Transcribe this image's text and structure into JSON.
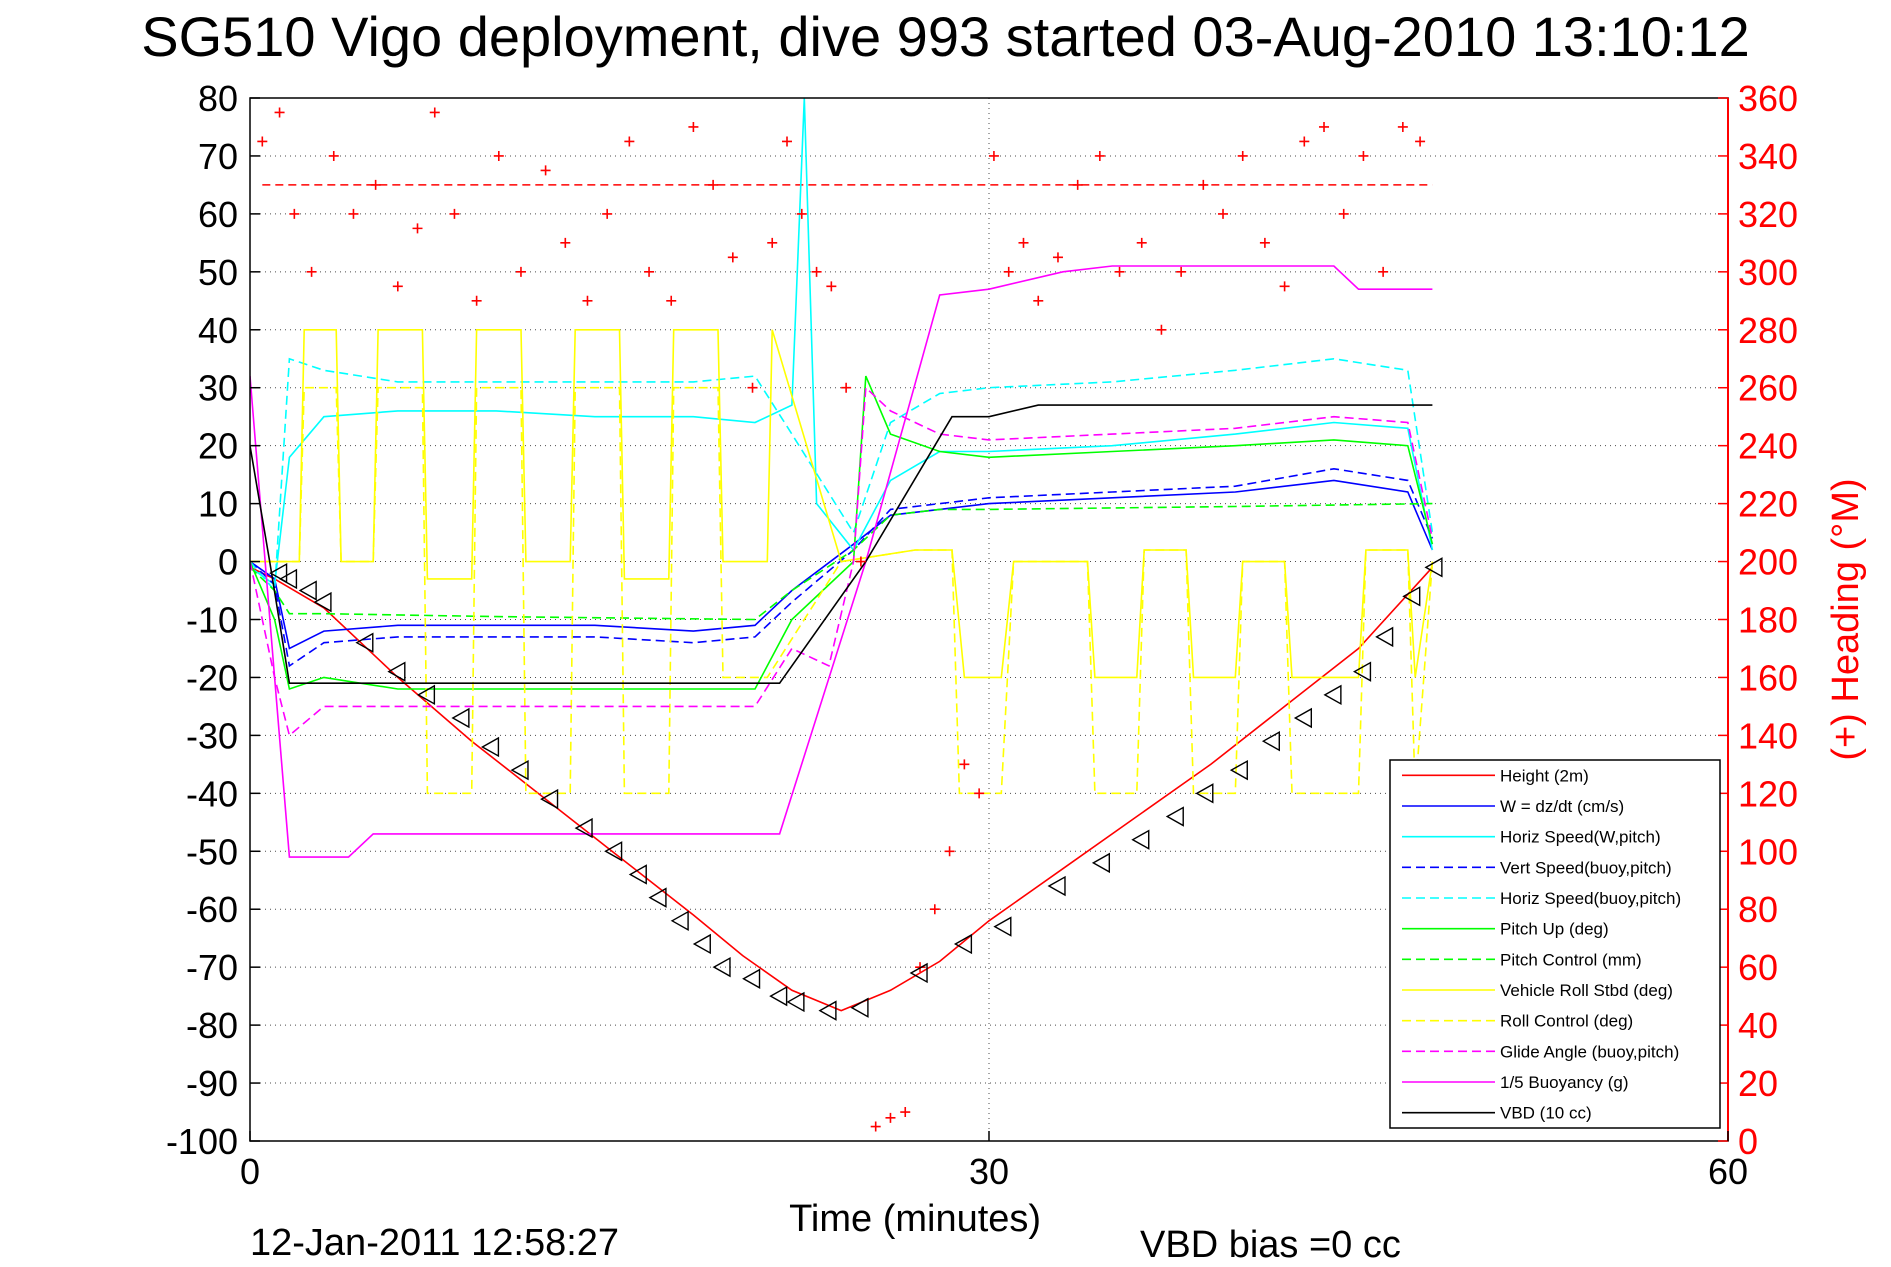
{
  "title": "SG510 Vigo deployment, dive 993 started 03-Aug-2010 13:10:12",
  "footer": {
    "date": "12-Jan-2011 12:58:27",
    "vbd_bias": "VBD bias =0 cc"
  },
  "chart_data": {
    "type": "line",
    "xlabel": "Time (minutes)",
    "ylabel_right": "(+) Heading (°M)",
    "xlim": [
      0,
      60
    ],
    "ylim_left": [
      -100,
      80
    ],
    "ylim_right": [
      0,
      360
    ],
    "x_ticks": [
      0,
      30,
      60
    ],
    "y_ticks_left": [
      80,
      70,
      60,
      50,
      40,
      30,
      20,
      10,
      0,
      -10,
      -20,
      -30,
      -40,
      -50,
      -60,
      -70,
      -80,
      -90,
      -100
    ],
    "y_ticks_right": [
      360,
      340,
      320,
      300,
      280,
      260,
      240,
      220,
      200,
      180,
      160,
      140,
      120,
      100,
      80,
      60,
      40,
      20,
      0
    ],
    "grid": true,
    "legend_position": "bottom-right",
    "colors": {
      "height": "#ff0000",
      "w": "#0000ff",
      "horiz_speed": "#00ffff",
      "pitch": "#00ff00",
      "roll": "#ffff00",
      "buoyancy": "#ff00ff",
      "vbd": "#000000",
      "heading": "#ff0000"
    },
    "series": [
      {
        "name": "Height (2m)",
        "color": "#ff0000",
        "style": "solid",
        "x": [
          0,
          1,
          3,
          6,
          9,
          12,
          15,
          18,
          20,
          22,
          24,
          26,
          28,
          30,
          33,
          36,
          39,
          42,
          45,
          48
        ],
        "y": [
          -1,
          -3,
          -8,
          -20,
          -31,
          -41,
          -51,
          -61,
          -68,
          -74,
          -77.5,
          -74,
          -69,
          -62,
          -53,
          -44,
          -35,
          -25,
          -15,
          -1
        ]
      },
      {
        "name": "W = dz/dt (cm/s)",
        "color": "#0000ff",
        "style": "solid",
        "x": [
          0,
          1,
          1.6,
          3,
          6,
          10,
          14,
          18,
          20.5,
          22,
          24.5,
          26,
          28,
          30,
          35,
          40,
          44,
          47,
          48
        ],
        "y": [
          0,
          -3,
          -15,
          -12,
          -11,
          -11,
          -11,
          -12,
          -11,
          -5,
          3,
          8,
          9,
          10,
          11,
          12,
          14,
          12,
          2
        ]
      },
      {
        "name": "Horiz Speed(W,pitch)",
        "color": "#00ffff",
        "style": "solid",
        "x": [
          0,
          1,
          1.6,
          3,
          6,
          10,
          14,
          18,
          20.5,
          22,
          22.5,
          23,
          24.5,
          26,
          28,
          30,
          35,
          40,
          44,
          47,
          48
        ],
        "y": [
          -1,
          -4,
          18,
          25,
          26,
          26,
          25,
          25,
          24,
          27,
          80,
          10,
          2,
          14,
          19,
          19,
          20,
          22,
          24,
          23,
          2
        ]
      },
      {
        "name": "Vert Speed(buoy,pitch)",
        "color": "#0000ff",
        "style": "dashed",
        "x": [
          0,
          1,
          1.6,
          3,
          6,
          10,
          14,
          18,
          20.5,
          22,
          24.5,
          26,
          28,
          30,
          35,
          40,
          44,
          47,
          48
        ],
        "y": [
          0,
          -4,
          -18,
          -14,
          -13,
          -13,
          -13,
          -14,
          -13,
          -7,
          2,
          9,
          10,
          11,
          12,
          13,
          16,
          14,
          4
        ]
      },
      {
        "name": "Horiz Speed(buoy,pitch)",
        "color": "#00ffff",
        "style": "dashed",
        "x": [
          0,
          1,
          1.6,
          3,
          6,
          10,
          14,
          18,
          20.5,
          22,
          24.5,
          26,
          28,
          30,
          35,
          40,
          44,
          47,
          48
        ],
        "y": [
          0,
          -5,
          35,
          33,
          31,
          31,
          31,
          31,
          32,
          22,
          5,
          24,
          29,
          30,
          31,
          33,
          35,
          33,
          5
        ]
      },
      {
        "name": "Pitch Up (deg)",
        "color": "#00ff00",
        "style": "solid",
        "x": [
          0,
          1,
          1.6,
          3,
          6,
          10,
          14,
          18,
          20.5,
          22,
          24.5,
          25,
          26,
          28,
          30,
          35,
          40,
          44,
          47,
          48
        ],
        "y": [
          0,
          -10,
          -22,
          -20,
          -22,
          -22,
          -22,
          -22,
          -22,
          -10,
          0,
          32,
          22,
          19,
          18,
          19,
          20,
          21,
          20,
          3
        ]
      },
      {
        "name": "Pitch Control (mm)",
        "color": "#00ff00",
        "style": "dashed",
        "x": [
          0,
          1,
          1.6,
          3,
          10,
          20.5,
          22,
          24.5,
          26,
          28,
          30,
          40,
          48
        ],
        "y": [
          -1,
          -5,
          -9,
          -9,
          -9.5,
          -10,
          -5,
          2,
          8,
          9,
          9,
          9.5,
          10
        ]
      },
      {
        "name": "Vehicle Roll Stbd (deg)",
        "color": "#ffff00",
        "style": "solid",
        "x": [
          0,
          2,
          2.2,
          3.5,
          3.7,
          5,
          5.2,
          7,
          7.2,
          9,
          9.2,
          11,
          11.2,
          13,
          13.2,
          15,
          15.2,
          17,
          17.2,
          19,
          19.2,
          21,
          21.2,
          24,
          27,
          28.5,
          29,
          30.5,
          31,
          34,
          34.3,
          36,
          36.3,
          38,
          38.3,
          40,
          40.3,
          42,
          42.3,
          45,
          45.3,
          47,
          47.3,
          48
        ],
        "y": [
          0,
          0,
          40,
          40,
          0,
          0,
          40,
          40,
          -3,
          -3,
          40,
          40,
          0,
          0,
          40,
          40,
          -3,
          -3,
          40,
          40,
          0,
          0,
          40,
          0,
          2,
          2,
          -20,
          -20,
          0,
          0,
          -20,
          -20,
          2,
          2,
          -20,
          -20,
          0,
          0,
          -20,
          -20,
          2,
          2,
          -20,
          0
        ]
      },
      {
        "name": "Roll Control (deg)",
        "color": "#ffff00",
        "style": "dashed",
        "x": [
          0,
          2,
          2.2,
          3.5,
          3.7,
          5,
          5.2,
          7,
          7.2,
          9,
          9.2,
          11,
          11.2,
          13,
          13.2,
          15,
          15.2,
          17,
          17.2,
          19,
          19.2,
          21,
          24,
          27,
          28.5,
          28.8,
          30.5,
          31,
          34,
          34.3,
          36,
          36.3,
          38,
          38.3,
          40,
          40.3,
          42,
          42.3,
          45,
          45.3,
          47,
          47.3,
          48
        ],
        "y": [
          0,
          0,
          30,
          30,
          0,
          0,
          30,
          30,
          -40,
          -40,
          30,
          30,
          -40,
          -40,
          30,
          30,
          -40,
          -40,
          30,
          30,
          -20,
          -20,
          0,
          2,
          2,
          -40,
          -40,
          0,
          0,
          -40,
          -40,
          2,
          2,
          -40,
          -40,
          0,
          0,
          -40,
          -40,
          2,
          2,
          -40,
          0
        ]
      },
      {
        "name": "Glide Angle (buoy,pitch)",
        "color": "#ff00ff",
        "style": "dashed",
        "x": [
          0,
          1,
          1.6,
          3,
          6,
          10,
          14,
          18,
          20.5,
          22,
          23.5,
          24.5,
          25,
          26,
          28,
          30,
          35,
          40,
          44,
          47,
          48
        ],
        "y": [
          0,
          -20,
          -30,
          -25,
          -25,
          -25,
          -25,
          -25,
          -25,
          -15,
          -18,
          0,
          30,
          26,
          22,
          21,
          22,
          23,
          25,
          24,
          4
        ]
      },
      {
        "name": "1/5 Buoyancy (g)",
        "color": "#ff00ff",
        "style": "solid",
        "x": [
          0,
          1,
          1.6,
          4,
          5,
          10,
          15,
          21.5,
          25,
          28,
          30,
          33,
          35,
          38,
          42,
          44,
          45,
          48
        ],
        "y": [
          32,
          -20,
          -51,
          -51,
          -47,
          -47,
          -47,
          -47,
          0,
          46,
          47,
          50,
          51,
          51,
          51,
          51,
          47,
          47
        ]
      },
      {
        "name": "VBD (10 cc)",
        "color": "#000000",
        "style": "solid",
        "x": [
          0,
          0.8,
          1.6,
          5,
          10,
          15,
          20,
          21.5,
          25,
          28.5,
          30,
          32,
          35,
          40,
          45,
          48
        ],
        "y": [
          20,
          0,
          -21,
          -21,
          -21,
          -21,
          -21,
          -21,
          0,
          25,
          25,
          27,
          27,
          27,
          27,
          27
        ]
      }
    ],
    "heading_axis": "right",
    "heading_series": {
      "name": "Heading",
      "color": "#ff0000",
      "marker": "+",
      "constant_reference": 330,
      "x": [
        0.5,
        1.2,
        1.8,
        2.5,
        3.4,
        4.2,
        5.1,
        6,
        6.8,
        7.5,
        8.3,
        9.2,
        10.1,
        11,
        12,
        12.8,
        13.7,
        14.5,
        15.4,
        16.2,
        17.1,
        18,
        18.8,
        19.6,
        20.4,
        21.2,
        21.8,
        22.4,
        23,
        23.6,
        24.2,
        24.8,
        25.4,
        26,
        26.6,
        27.2,
        27.8,
        28.4,
        29,
        29.6,
        30.2,
        30.8,
        31.4,
        32,
        32.8,
        33.6,
        34.5,
        35.3,
        36.2,
        37,
        37.8,
        38.7,
        39.5,
        40.3,
        41.2,
        42,
        42.8,
        43.6,
        44.4,
        45.2,
        46,
        46.8,
        47.5
      ],
      "y": [
        345,
        355,
        320,
        300,
        340,
        320,
        330,
        295,
        315,
        355,
        320,
        290,
        340,
        300,
        335,
        310,
        290,
        320,
        345,
        300,
        290,
        350,
        330,
        305,
        260,
        310,
        345,
        320,
        300,
        295,
        260,
        200,
        5,
        8,
        10,
        60,
        80,
        100,
        130,
        120,
        340,
        300,
        310,
        290,
        305,
        330,
        340,
        300,
        310,
        280,
        300,
        330,
        320,
        340,
        310,
        295,
        345,
        350,
        320,
        340,
        300,
        350,
        345
      ]
    },
    "markers": {
      "type": "triangle-left",
      "color": "#000000",
      "x": [
        1.2,
        1.6,
        2.4,
        3,
        4.7,
        6,
        7.2,
        8.6,
        9.8,
        11,
        12.2,
        13.6,
        14.8,
        15.8,
        16.6,
        17.5,
        18.4,
        19.2,
        20.4,
        21.5,
        22.2,
        23.5,
        24.8,
        27.2,
        29,
        30.6,
        32.8,
        34.6,
        36.2,
        37.6,
        38.8,
        40.2,
        41.5,
        42.8,
        44,
        45.2,
        46.1,
        47.2,
        48.1
      ],
      "y": [
        -2,
        -3,
        -5,
        -7,
        -14,
        -19,
        -23,
        -27,
        -32,
        -36,
        -41,
        -46,
        -50,
        -54,
        -58,
        -62,
        -66,
        -70,
        -72,
        -75,
        -76,
        -77.5,
        -77,
        -71,
        -66,
        -63,
        -56,
        -52,
        -48,
        -44,
        -40,
        -36,
        -31,
        -27,
        -23,
        -19,
        -13,
        -6,
        -1
      ]
    }
  },
  "legend": {
    "items": [
      {
        "label": "Height (2m)",
        "color": "#ff0000",
        "style": "solid"
      },
      {
        "label": "W = dz/dt (cm/s)",
        "color": "#0000ff",
        "style": "solid"
      },
      {
        "label": "Horiz Speed(W,pitch)",
        "color": "#00ffff",
        "style": "solid"
      },
      {
        "label": "Vert Speed(buoy,pitch)",
        "color": "#0000ff",
        "style": "dashed"
      },
      {
        "label": "Horiz Speed(buoy,pitch)",
        "color": "#00ffff",
        "style": "dashed"
      },
      {
        "label": "Pitch Up (deg)",
        "color": "#00ff00",
        "style": "solid"
      },
      {
        "label": "Pitch Control (mm)",
        "color": "#00ff00",
        "style": "dashed"
      },
      {
        "label": "Vehicle Roll Stbd (deg)",
        "color": "#ffff00",
        "style": "solid"
      },
      {
        "label": "Roll Control (deg)",
        "color": "#ffff00",
        "style": "dashed"
      },
      {
        "label": "Glide Angle (buoy,pitch)",
        "color": "#ff00ff",
        "style": "dashed"
      },
      {
        "label": "1/5 Buoyancy (g)",
        "color": "#ff00ff",
        "style": "solid"
      },
      {
        "label": "VBD (10 cc)",
        "color": "#000000",
        "style": "solid"
      }
    ]
  }
}
